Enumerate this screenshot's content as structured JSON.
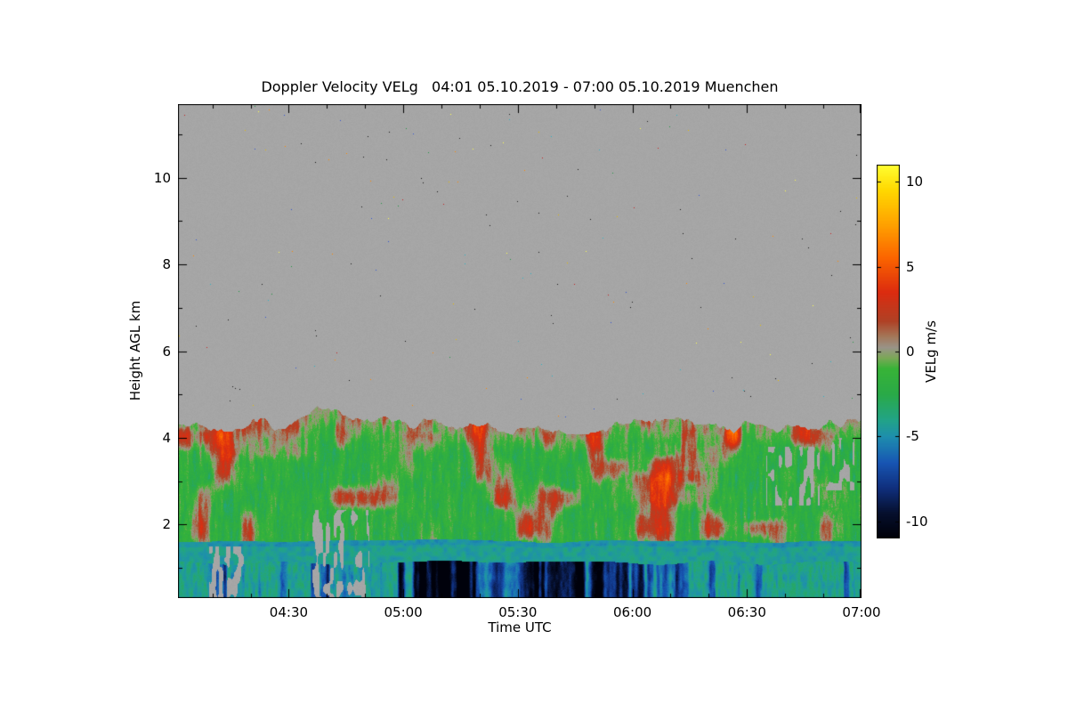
{
  "chart_data": {
    "type": "heatmap",
    "title": "Doppler Velocity VELg   04:01 05.10.2019 - 07:00 05.10.2019 Muenchen",
    "product": "Doppler Velocity VELg",
    "location": "Muenchen",
    "time_start": "04:01 05.10.2019",
    "time_end": "07:00 05.10.2019",
    "xlabel": "Time UTC",
    "ylabel": "Height AGL km",
    "x_tick_labels": [
      "04:30",
      "05:00",
      "05:30",
      "06:00",
      "06:30",
      "07:00"
    ],
    "x_tick_minutes": [
      270,
      300,
      330,
      360,
      390,
      420
    ],
    "x_range_minutes": [
      241,
      420
    ],
    "x_minor_step_minutes": 10,
    "y_ticks": [
      2,
      4,
      6,
      8,
      10
    ],
    "y_minor_ticks": [
      1,
      3,
      5,
      7,
      9,
      11
    ],
    "y_range": [
      0.3,
      11.7
    ],
    "background_color": "#ffffff",
    "no_data_color": "#a6a6a6",
    "colorbar": {
      "label": "VELg m/s",
      "ticks": [
        10,
        5,
        0,
        -5,
        -10
      ],
      "range": [
        -11,
        11
      ],
      "colormap": [
        [
          -11,
          "#000008"
        ],
        [
          -9.5,
          "#06102e"
        ],
        [
          -8,
          "#10307e"
        ],
        [
          -6.5,
          "#1856b4"
        ],
        [
          -5,
          "#1e8fae"
        ],
        [
          -4,
          "#22a487"
        ],
        [
          -2.5,
          "#2aaa48"
        ],
        [
          -1,
          "#38b438"
        ],
        [
          -0.35,
          "#7ca858"
        ],
        [
          0.25,
          "#9a9488"
        ],
        [
          0.9,
          "#a4785a"
        ],
        [
          1.8,
          "#b04226"
        ],
        [
          3.5,
          "#dc2c10"
        ],
        [
          5.5,
          "#fb6400"
        ],
        [
          7.5,
          "#ffa200"
        ],
        [
          9.5,
          "#ffd800"
        ],
        [
          11,
          "#ffff32"
        ]
      ]
    },
    "speckle_colors": [
      "#141414",
      "#202020",
      "#c42020",
      "#e6bc00",
      "#ffff4c",
      "#2eb2c4",
      "#3052d2",
      "#1e9440",
      "#ff8800",
      "#101010"
    ],
    "regions": [
      {
        "name": "clear-air-no-signal",
        "height_km": [
          4.4,
          11.7
        ],
        "velocity_m_s": null,
        "appearance": "uniform gray with sparse single-pixel colored noise speckles"
      },
      {
        "name": "aerosol-turbulence-layer",
        "height_km": [
          1.6,
          4.4
        ],
        "velocity_m_s": [
          -4,
          3
        ],
        "appearance": "green vertical striations -3 to -1 m/s with red-orange updraft patches up to +3 m/s and red fringe along ragged layer top near 4-4.8 km"
      },
      {
        "name": "transition-band",
        "height_km": [
          1.1,
          1.6
        ],
        "velocity_m_s": [
          -5,
          -3.5
        ],
        "appearance": "bright cyan-teal horizontal band"
      },
      {
        "name": "near-surface-layer",
        "height_km": [
          0.3,
          1.1
        ],
        "velocity_m_s": [
          -10,
          -3.5
        ],
        "appearance": "teal background with dark navy-black downdraft streaks, strongest 04:55-06:10"
      }
    ],
    "features": {
      "updraft_patches": [
        {
          "time_min": [
            245,
            278
          ],
          "height_km": [
            3.4,
            4.8
          ],
          "boost": 2.4
        },
        {
          "time_min": [
            354,
            382
          ],
          "height_km": [
            2.3,
            3.3
          ],
          "boost": 2.8
        },
        {
          "time_min": [
            364,
            390
          ],
          "height_km": [
            3.3,
            4.4
          ],
          "boost": 1.8
        },
        {
          "time_min": [
            299,
            314
          ],
          "height_km": [
            3.6,
            4.6
          ],
          "boost": 1.5
        },
        {
          "time_min": [
            322,
            335
          ],
          "height_km": [
            1.9,
            2.7
          ],
          "boost": 1.2
        },
        {
          "time_min": [
            404,
            416
          ],
          "height_km": [
            2.4,
            3.2
          ],
          "boost": 1.4
        }
      ],
      "gray_gap_zones": [
        {
          "time_min": [
            276,
            291
          ],
          "height_km": [
            0.3,
            2.35
          ],
          "threshold": 0.52
        },
        {
          "time_min": [
            249,
            259
          ],
          "height_km": [
            0.3,
            1.5
          ],
          "threshold": 0.5
        },
        {
          "time_min": [
            395,
            409
          ],
          "height_km": [
            2.45,
            3.8
          ],
          "threshold": 0.58
        },
        {
          "time_min": [
            410,
            418
          ],
          "height_km": [
            2.8,
            4.0
          ],
          "threshold": 0.62
        }
      ],
      "downdraft_zones": [
        {
          "time_min": [
            295,
            372
          ],
          "boost": 0.4
        },
        {
          "time_min": [
            243,
            258
          ],
          "boost": 0.25
        }
      ]
    }
  }
}
